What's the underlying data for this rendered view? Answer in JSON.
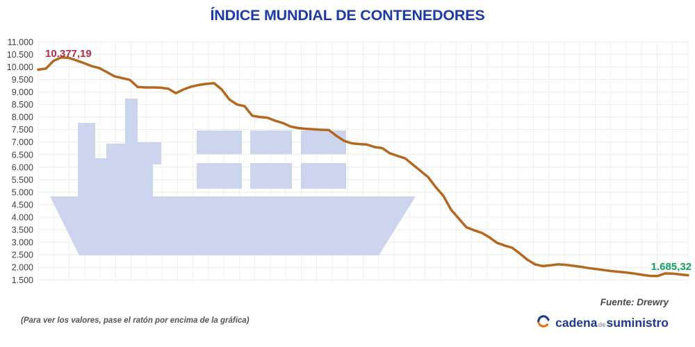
{
  "title": "ÍNDICE MUNDIAL DE CONTENEDORES",
  "chart_data": {
    "type": "line",
    "title": "ÍNDICE MUNDIAL DE CONTENEDORES",
    "xlabel": "",
    "ylabel": "",
    "x_labels_visible": false,
    "grid": true,
    "ylim": [
      1500,
      11000
    ],
    "y_tick_step": 500,
    "y_ticks": [
      "11.000",
      "10.500",
      "10.000",
      "9.500",
      "9.000",
      "8.500",
      "8.000",
      "7.500",
      "7.000",
      "6.500",
      "6.000",
      "5.500",
      "5.000",
      "4.500",
      "4.000",
      "3.500",
      "3.000",
      "2.500",
      "2.000",
      "1.500"
    ],
    "values": [
      9890,
      9930,
      10240,
      10377.19,
      10360,
      10260,
      10150,
      10030,
      9950,
      9790,
      9620,
      9550,
      9480,
      9200,
      9180,
      9180,
      9170,
      9130,
      8950,
      9100,
      9210,
      9280,
      9320,
      9350,
      9100,
      8700,
      8500,
      8430,
      8050,
      8000,
      7970,
      7850,
      7760,
      7620,
      7560,
      7530,
      7510,
      7490,
      7480,
      7250,
      7050,
      6950,
      6920,
      6900,
      6800,
      6760,
      6550,
      6450,
      6350,
      6100,
      5850,
      5600,
      5200,
      4850,
      4300,
      3950,
      3600,
      3480,
      3380,
      3200,
      2980,
      2870,
      2780,
      2550,
      2300,
      2120,
      2050,
      2080,
      2120,
      2100,
      2060,
      2020,
      1970,
      1930,
      1890,
      1850,
      1820,
      1790,
      1750,
      1700,
      1660,
      1655,
      1755,
      1750,
      1715,
      1685.32
    ],
    "annotations": {
      "max": {
        "label": "10.377,19",
        "value": 10377.19,
        "color": "#b22b49"
      },
      "last": {
        "label": "1.685,32",
        "value": 1685.32,
        "color": "#13a15f"
      }
    },
    "watermark": "container-ship"
  },
  "colors": {
    "title": "#1c3aa8",
    "line": "#b4671e",
    "grid_h": "#e8ebe8",
    "grid_v": "#eef0ef",
    "tick": "#3f3f3f",
    "watermark": "#cdd5ee",
    "note": "#555555",
    "source": "#4a4a4a",
    "logo_blue": "#1d3a8c",
    "logo_orange": "#e96c0c",
    "logo_de": "#97a0ad"
  },
  "footer": {
    "note": "(Para ver los valores, pase el ratón por encima de la gráfica)",
    "source": "Fuente: Drewry"
  },
  "logo": {
    "part1": "cadena",
    "part2": "de",
    "part3": "suministro"
  }
}
